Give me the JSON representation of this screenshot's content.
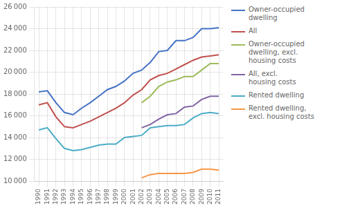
{
  "chart_data": {
    "type": "line",
    "x": [
      1990,
      1991,
      1992,
      1993,
      1994,
      1995,
      1996,
      1997,
      1998,
      1999,
      2000,
      2001,
      2002,
      2003,
      2004,
      2005,
      2006,
      2007,
      2008,
      2009,
      2010,
      2011
    ],
    "xlim": [
      1989.5,
      2011.5
    ],
    "xticks": [
      1990,
      1991,
      1992,
      1993,
      1994,
      1995,
      1996,
      1997,
      1998,
      1999,
      2000,
      2001,
      2002,
      2003,
      2004,
      2005,
      2006,
      2007,
      2008,
      2009,
      2010,
      2011
    ],
    "ylim": [
      10000,
      26000
    ],
    "yticks": [
      {
        "value": 10000,
        "label": "10 000"
      },
      {
        "value": 12000,
        "label": "12 000"
      },
      {
        "value": 14000,
        "label": "14 000"
      },
      {
        "value": 16000,
        "label": "16 000"
      },
      {
        "value": 18000,
        "label": "18 000"
      },
      {
        "value": 20000,
        "label": "20 000"
      },
      {
        "value": 22000,
        "label": "22 000"
      },
      {
        "value": 24000,
        "label": "24 000"
      },
      {
        "value": 26000,
        "label": "26 000"
      }
    ],
    "grid": true,
    "legend": "right",
    "series": [
      {
        "name": "Owner-occupied\ndwelling",
        "color": "#4472C4",
        "values": [
          18200,
          18300,
          17200,
          16300,
          16100,
          16700,
          17200,
          17800,
          18400,
          18700,
          19200,
          19900,
          20200,
          20900,
          21900,
          22000,
          22900,
          22900,
          23200,
          24000,
          24000,
          24100
        ]
      },
      {
        "name": "All",
        "color": "#C0504D",
        "values": [
          17000,
          17200,
          15900,
          15000,
          14900,
          15200,
          15500,
          15900,
          16300,
          16700,
          17200,
          17900,
          18400,
          19300,
          19700,
          19900,
          20300,
          20700,
          21100,
          21400,
          21500,
          21600
        ]
      },
      {
        "name": "Owner-occupied\ndwelling, excl.\nhousing costs",
        "color": "#9BBB59",
        "values": [
          null,
          null,
          null,
          null,
          null,
          null,
          null,
          null,
          null,
          null,
          null,
          null,
          17200,
          17800,
          18700,
          19100,
          19300,
          19600,
          19600,
          20200,
          20800,
          20800
        ]
      },
      {
        "name": "All, excl.\nhousing costs",
        "color": "#8064A2",
        "values": [
          null,
          null,
          null,
          null,
          null,
          null,
          null,
          null,
          null,
          null,
          null,
          null,
          14900,
          15200,
          15700,
          16100,
          16200,
          16800,
          16900,
          17500,
          17800,
          17800
        ]
      },
      {
        "name": "Rented dwelling",
        "color": "#4BACC6",
        "values": [
          14700,
          14900,
          13900,
          13000,
          12800,
          12900,
          13100,
          13300,
          13400,
          13400,
          14000,
          14100,
          14200,
          14900,
          15000,
          15100,
          15100,
          15200,
          15800,
          16200,
          16300,
          16200
        ]
      },
      {
        "name": "Rented dwelling,\nexcl. housing costs",
        "color": "#F79646",
        "values": [
          null,
          null,
          null,
          null,
          null,
          null,
          null,
          null,
          null,
          null,
          null,
          null,
          10300,
          10600,
          10700,
          10700,
          10700,
          10700,
          10800,
          11100,
          11100,
          11000
        ]
      }
    ]
  }
}
